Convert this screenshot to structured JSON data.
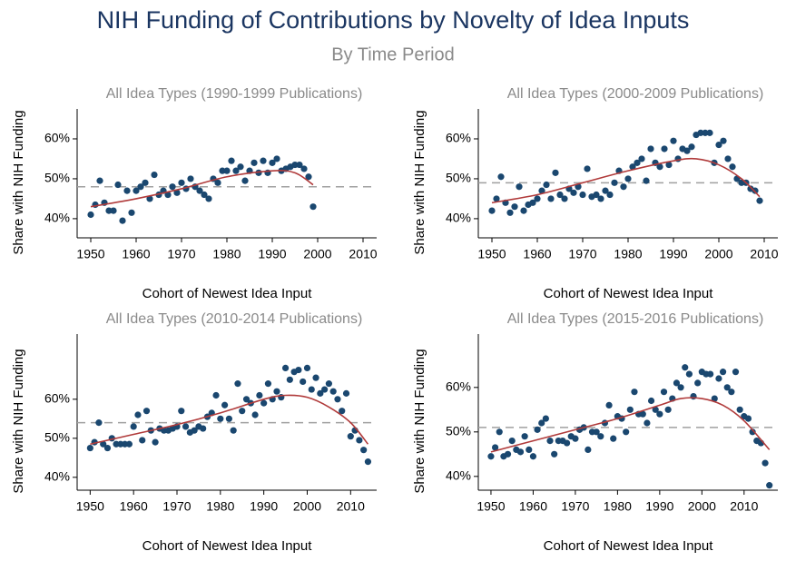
{
  "title": "NIH Funding of Contributions by Novelty of Idea Inputs",
  "subtitle": "By Time Period",
  "chart_data": [
    {
      "type": "scatter",
      "title": "All Idea Types  (1990-1999 Publications)",
      "xlabel": "Cohort of Newest Idea Input",
      "ylabel": "Share with NIH Funding",
      "x": [
        1950,
        1951,
        1952,
        1953,
        1954,
        1955,
        1956,
        1957,
        1958,
        1959,
        1960,
        1961,
        1962,
        1963,
        1964,
        1965,
        1966,
        1967,
        1968,
        1969,
        1970,
        1971,
        1972,
        1973,
        1974,
        1975,
        1976,
        1977,
        1978,
        1979,
        1980,
        1981,
        1982,
        1983,
        1984,
        1985,
        1986,
        1987,
        1988,
        1989,
        1990,
        1991,
        1992,
        1993,
        1994,
        1995,
        1996,
        1997,
        1998,
        1999
      ],
      "values": [
        41,
        43.5,
        49.5,
        44,
        42,
        42,
        48.5,
        39.5,
        47,
        41.5,
        47,
        48,
        49,
        45,
        51,
        46,
        47,
        46,
        48,
        46.5,
        49,
        47.5,
        50,
        48,
        47,
        46,
        45,
        50,
        49,
        52,
        52,
        54.5,
        52,
        53,
        49.5,
        52,
        54,
        51.5,
        54.5,
        51.5,
        54,
        55,
        52,
        52.5,
        53,
        53.5,
        53.5,
        52.5,
        50.5,
        43
      ],
      "color": "#1a476f",
      "fit": {
        "color": "#b03a3a",
        "x": [
          1950,
          1960,
          1970,
          1980,
          1990,
          1995,
          1999
        ],
        "values": [
          43,
          45,
          47.5,
          50.5,
          52,
          51.5,
          48.5
        ]
      },
      "reference": {
        "value": 48,
        "color": "#a0a0a0"
      },
      "xlim": [
        1947,
        2013
      ],
      "xticks": [
        1950,
        1960,
        1970,
        1980,
        1990,
        2000,
        2010
      ],
      "ylim": [
        35.2,
        67.5
      ],
      "yticks": [
        {
          "value": 40,
          "label": "40%"
        },
        {
          "value": 50,
          "label": "50%"
        },
        {
          "value": 60,
          "label": "60%"
        }
      ]
    },
    {
      "type": "scatter",
      "title": "All Idea Types  (2000-2009 Publications)",
      "xlabel": "Cohort of Newest Idea Input",
      "ylabel": "Share with NIH Funding",
      "x": [
        1950,
        1951,
        1952,
        1953,
        1954,
        1955,
        1956,
        1957,
        1958,
        1959,
        1960,
        1961,
        1962,
        1963,
        1964,
        1965,
        1966,
        1967,
        1968,
        1969,
        1970,
        1971,
        1972,
        1973,
        1974,
        1975,
        1976,
        1977,
        1978,
        1979,
        1980,
        1981,
        1982,
        1983,
        1984,
        1985,
        1986,
        1987,
        1988,
        1989,
        1990,
        1991,
        1992,
        1993,
        1994,
        1995,
        1996,
        1997,
        1998,
        1999,
        2000,
        2001,
        2002,
        2003,
        2004,
        2005,
        2006,
        2007,
        2008,
        2009
      ],
      "values": [
        42,
        45,
        50.5,
        44,
        41.5,
        43,
        48,
        42,
        43.5,
        44,
        45,
        47,
        48.5,
        45,
        51.5,
        46,
        45,
        47.5,
        46.5,
        48,
        46,
        52.5,
        45.5,
        46,
        45,
        47,
        46,
        49,
        52,
        48,
        50,
        53,
        54,
        55,
        49.5,
        57.5,
        54,
        53,
        57.5,
        53.5,
        59.5,
        55,
        57.5,
        57,
        58,
        61,
        61.5,
        61.5,
        61.5,
        54,
        58.5,
        59.5,
        55,
        53,
        50,
        49,
        49,
        47.5,
        47,
        44.5
      ],
      "color": "#1a476f",
      "fit": {
        "color": "#b03a3a",
        "x": [
          1950,
          1960,
          1970,
          1980,
          1990,
          1995,
          2000,
          2005,
          2009
        ],
        "values": [
          44,
          46,
          49,
          52,
          54.5,
          55,
          53.5,
          50,
          45.5
        ]
      },
      "reference": {
        "value": 49,
        "color": "#a0a0a0"
      },
      "xlim": [
        1947,
        2013
      ],
      "xticks": [
        1950,
        1960,
        1970,
        1980,
        1990,
        2000,
        2010
      ],
      "ylim": [
        35.2,
        67.5
      ],
      "yticks": [
        {
          "value": 40,
          "label": "40%"
        },
        {
          "value": 50,
          "label": "50%"
        },
        {
          "value": 60,
          "label": "60%"
        }
      ]
    },
    {
      "type": "scatter",
      "title": "All Idea Types  (2010-2014 Publications)",
      "xlabel": "Cohort of Newest Idea Input",
      "ylabel": "Share with NIH Funding",
      "x": [
        1950,
        1951,
        1952,
        1953,
        1954,
        1955,
        1956,
        1957,
        1958,
        1959,
        1960,
        1961,
        1962,
        1963,
        1964,
        1965,
        1966,
        1967,
        1968,
        1969,
        1970,
        1971,
        1972,
        1973,
        1974,
        1975,
        1976,
        1977,
        1978,
        1979,
        1980,
        1981,
        1982,
        1983,
        1984,
        1985,
        1986,
        1987,
        1988,
        1989,
        1990,
        1991,
        1992,
        1993,
        1994,
        1995,
        1996,
        1997,
        1998,
        1999,
        2000,
        2001,
        2002,
        2003,
        2004,
        2005,
        2006,
        2007,
        2008,
        2009,
        2010,
        2011,
        2012,
        2013,
        2014
      ],
      "values": [
        47.5,
        49,
        54,
        48.5,
        47.5,
        50,
        48.5,
        48.5,
        48.5,
        48.5,
        53,
        56,
        49.5,
        57,
        52,
        49,
        52.5,
        52,
        52,
        52.5,
        53,
        57,
        53,
        51.5,
        52,
        53,
        52.5,
        55.5,
        56.5,
        61,
        55,
        58.5,
        55,
        52,
        64,
        57,
        60,
        59,
        56,
        61,
        59,
        64,
        60,
        62,
        60.5,
        68,
        65,
        67,
        67.5,
        64.5,
        68,
        62.5,
        65.5,
        61.5,
        62.5,
        64,
        62,
        60,
        57,
        61.5,
        50.5,
        52,
        49.5,
        47,
        44
      ],
      "color": "#1a476f",
      "fit": {
        "color": "#b03a3a",
        "x": [
          1950,
          1960,
          1970,
          1980,
          1990,
          1995,
          2000,
          2005,
          2010,
          2014
        ],
        "values": [
          48.5,
          51,
          53.5,
          56.5,
          60,
          61,
          60.5,
          58,
          54,
          48.5
        ]
      },
      "reference": {
        "value": 54,
        "color": "#a0a0a0"
      },
      "xlim": [
        1947,
        2016
      ],
      "xticks": [
        1950,
        1960,
        1970,
        1980,
        1990,
        2000,
        2010
      ],
      "ylim": [
        36.7,
        76.7
      ],
      "yticks": [
        {
          "value": 40,
          "label": "40%"
        },
        {
          "value": 50,
          "label": "50%"
        },
        {
          "value": 60,
          "label": "60%"
        }
      ]
    },
    {
      "type": "scatter",
      "title": "All Idea Types  (2015-2016 Publications)",
      "xlabel": "Cohort of Newest Idea Input",
      "ylabel": "Share with NIH Funding",
      "x": [
        1950,
        1951,
        1952,
        1953,
        1954,
        1955,
        1956,
        1957,
        1958,
        1959,
        1960,
        1961,
        1962,
        1963,
        1964,
        1965,
        1966,
        1967,
        1968,
        1969,
        1970,
        1971,
        1972,
        1973,
        1974,
        1975,
        1976,
        1977,
        1978,
        1979,
        1980,
        1981,
        1982,
        1983,
        1984,
        1985,
        1986,
        1987,
        1988,
        1989,
        1990,
        1991,
        1992,
        1993,
        1994,
        1995,
        1996,
        1997,
        1998,
        1999,
        2000,
        2001,
        2002,
        2003,
        2004,
        2005,
        2006,
        2007,
        2008,
        2009,
        2010,
        2011,
        2012,
        2013,
        2014,
        2015,
        2016
      ],
      "values": [
        44.5,
        46.5,
        50,
        44.5,
        45,
        48,
        46,
        45.5,
        49,
        46,
        44.5,
        50.5,
        52,
        53,
        48,
        45,
        48,
        48,
        47.5,
        49,
        48.5,
        50.5,
        51,
        46,
        50,
        50,
        49,
        52,
        56,
        48.5,
        53.5,
        53,
        50,
        55,
        59,
        54,
        54,
        52,
        57,
        55,
        54,
        59,
        55,
        57.5,
        61,
        60,
        64.5,
        63,
        58,
        61,
        63.5,
        63,
        63,
        57.5,
        62,
        63.5,
        60,
        59,
        63.5,
        55,
        53.5,
        53,
        50,
        48,
        47.5,
        43,
        38
      ],
      "color": "#1a476f",
      "fit": {
        "color": "#b03a3a",
        "x": [
          1950,
          1960,
          1970,
          1980,
          1990,
          1995,
          2000,
          2005,
          2010,
          2016
        ],
        "values": [
          45.5,
          48,
          50.5,
          53,
          56,
          57.5,
          57.5,
          56,
          52.5,
          46
        ]
      },
      "reference": {
        "value": 51,
        "color": "#a0a0a0"
      },
      "xlim": [
        1947,
        2018
      ],
      "xticks": [
        1950,
        1960,
        1970,
        1980,
        1990,
        2000,
        2010
      ],
      "ylim": [
        36.9,
        72
      ],
      "yticks": [
        {
          "value": 40,
          "label": "40%"
        },
        {
          "value": 50,
          "label": "50%"
        },
        {
          "value": 60,
          "label": "60%"
        }
      ]
    }
  ]
}
